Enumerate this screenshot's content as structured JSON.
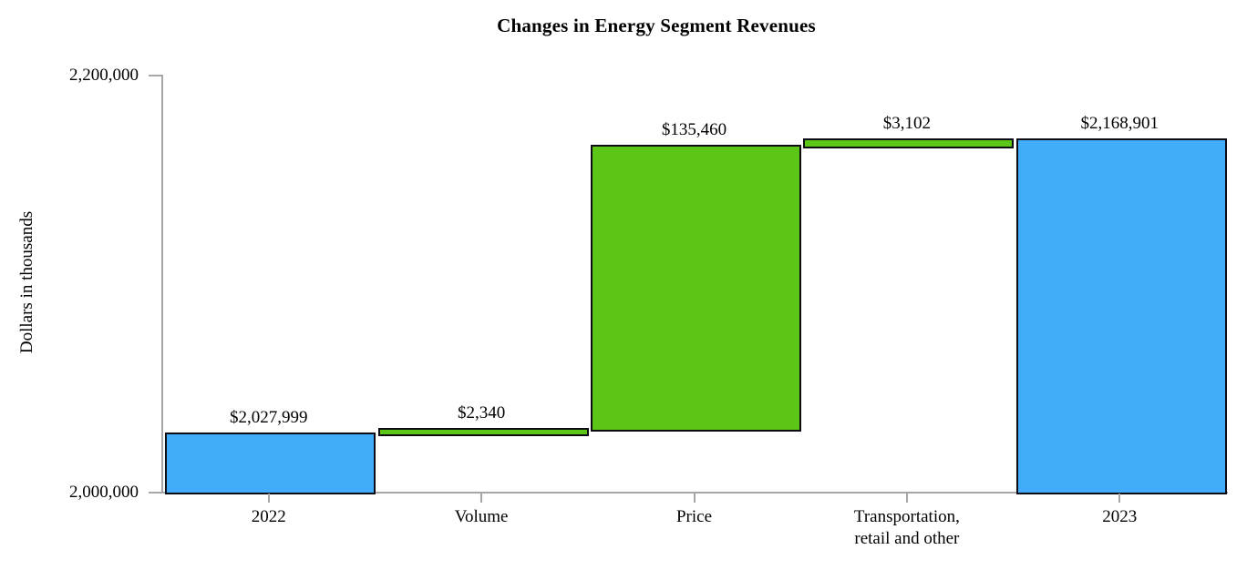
{
  "title": "Changes in Energy Segment Revenues",
  "y_axis": {
    "label": "Dollars in thousands",
    "tick_top": "2,200,000",
    "tick_bottom": "2,000,000"
  },
  "chart_data": {
    "type": "bar",
    "subtype": "waterfall",
    "title": "Changes in Energy Segment Revenues",
    "ylabel": "Dollars in thousands",
    "units": "dollars in thousands",
    "ylim": [
      2000000,
      2200000
    ],
    "ytick_values": [
      2000000,
      2200000
    ],
    "ytick_labels": [
      "2,000,000",
      "2,200,000"
    ],
    "grid": false,
    "legend": false,
    "bars": [
      {
        "category_lines": [
          "2022"
        ],
        "value_label": "$2,027,999",
        "value": 2027999,
        "start": 2000000,
        "end": 2027999,
        "role": "total",
        "color_key": "blue"
      },
      {
        "category_lines": [
          "Volume"
        ],
        "value_label": "$2,340",
        "value": 2340,
        "start": 2027999,
        "end": 2030339,
        "role": "increase",
        "color_key": "green"
      },
      {
        "category_lines": [
          "Price"
        ],
        "value_label": "$135,460",
        "value": 135460,
        "start": 2030339,
        "end": 2165799,
        "role": "increase",
        "color_key": "green"
      },
      {
        "category_lines": [
          "Transportation,",
          "retail and other"
        ],
        "value_label": "$3,102",
        "value": 3102,
        "start": 2165799,
        "end": 2168901,
        "role": "increase",
        "color_key": "green"
      },
      {
        "category_lines": [
          "2023"
        ],
        "value_label": "$2,168,901",
        "value": 2168901,
        "start": 2000000,
        "end": 2168901,
        "role": "total",
        "color_key": "blue"
      }
    ],
    "colors": {
      "blue": "#41acfa",
      "green": "#5cc617",
      "bar_border": "#0c0c14",
      "axis": "#a6a6a6",
      "text": "#000000"
    }
  }
}
